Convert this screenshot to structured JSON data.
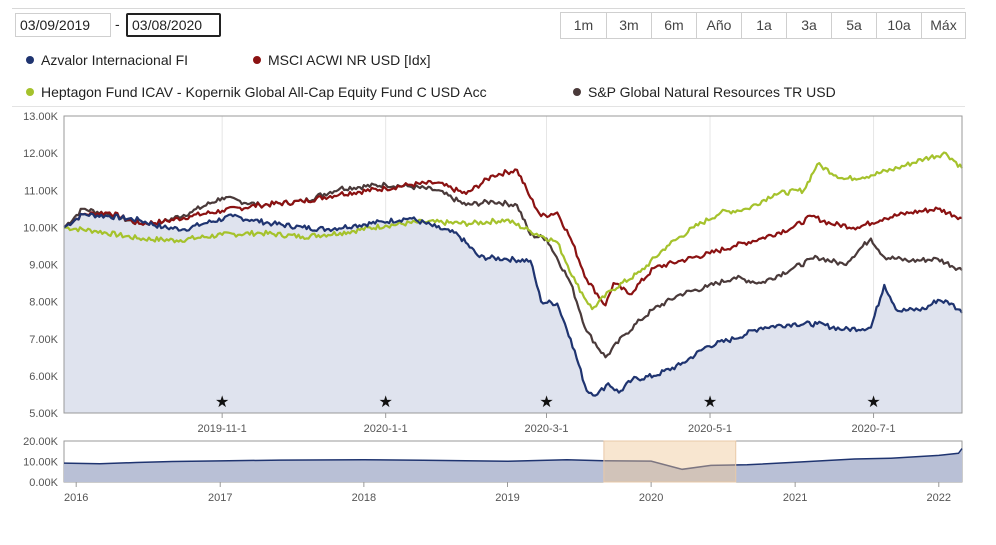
{
  "date_range": {
    "from": "03/09/2019",
    "separator": "-",
    "to": "03/08/2020"
  },
  "range_buttons": [
    "1m",
    "3m",
    "6m",
    "Año",
    "1a",
    "3a",
    "5a",
    "10a",
    "Máx"
  ],
  "legend": [
    {
      "name": "Azvalor Internacional FI",
      "color": "#1f3470"
    },
    {
      "name": "MSCI ACWI NR USD [Idx]",
      "color": "#8b1212"
    },
    {
      "name": "Heptagon Fund ICAV - Kopernik Global All-Cap Equity Fund C USD Acc",
      "color": "#a5c22c"
    },
    {
      "name": "S&P Global Natural Resources TR USD",
      "color": "#4a3a3a"
    }
  ],
  "chart_data": [
    {
      "type": "line",
      "title": "",
      "xlabel": "",
      "ylabel": "",
      "ylim": [
        5000,
        13000
      ],
      "yticks": [
        {
          "value": 5000,
          "label": "5.00K"
        },
        {
          "value": 6000,
          "label": "6.00K"
        },
        {
          "value": 7000,
          "label": "7.00K"
        },
        {
          "value": 8000,
          "label": "8.00K"
        },
        {
          "value": 9000,
          "label": "9.00K"
        },
        {
          "value": 10000,
          "label": "10.00K"
        },
        {
          "value": 11000,
          "label": "11.00K"
        },
        {
          "value": 12000,
          "label": "12.00K"
        },
        {
          "value": 13000,
          "label": "13.00K"
        }
      ],
      "xlim": [
        "2019-09-03",
        "2020-08-03"
      ],
      "xticks": [
        {
          "date": "2019-11-01",
          "label": "2019-11-1"
        },
        {
          "date": "2020-01-01",
          "label": "2020-1-1"
        },
        {
          "date": "2020-03-01",
          "label": "2020-3-1"
        },
        {
          "date": "2020-05-01",
          "label": "2020-5-1"
        },
        {
          "date": "2020-07-01",
          "label": "2020-7-1"
        }
      ],
      "event_markers": [
        "2019-11-01",
        "2020-01-01",
        "2020-03-01",
        "2020-05-01",
        "2020-07-01"
      ],
      "grid": "vertical",
      "legend_position": "top",
      "series": [
        {
          "name": "Azvalor Internacional FI",
          "color": "#1f3470",
          "area": true,
          "points": [
            [
              "2019-09-03",
              10000
            ],
            [
              "2019-09-10",
              10350
            ],
            [
              "2019-09-20",
              10300
            ],
            [
              "2019-10-01",
              10200
            ],
            [
              "2019-10-10",
              10000
            ],
            [
              "2019-10-18",
              9950
            ],
            [
              "2019-10-25",
              10100
            ],
            [
              "2019-11-05",
              10300
            ],
            [
              "2019-11-12",
              10200
            ],
            [
              "2019-11-20",
              10100
            ],
            [
              "2019-12-01",
              10000
            ],
            [
              "2019-12-10",
              9950
            ],
            [
              "2019-12-20",
              10050
            ],
            [
              "2019-12-31",
              10150
            ],
            [
              "2020-01-10",
              10250
            ],
            [
              "2020-01-20",
              10000
            ],
            [
              "2020-01-28",
              9800
            ],
            [
              "2020-02-05",
              9200
            ],
            [
              "2020-02-15",
              9150
            ],
            [
              "2020-02-24",
              9100
            ],
            [
              "2020-02-28",
              8000
            ],
            [
              "2020-03-05",
              7950
            ],
            [
              "2020-03-10",
              7000
            ],
            [
              "2020-03-16",
              5600
            ],
            [
              "2020-03-20",
              5500
            ],
            [
              "2020-03-24",
              5800
            ],
            [
              "2020-03-28",
              5550
            ],
            [
              "2020-04-02",
              5900
            ],
            [
              "2020-04-10",
              6000
            ],
            [
              "2020-04-20",
              6300
            ],
            [
              "2020-04-30",
              6800
            ],
            [
              "2020-05-10",
              7000
            ],
            [
              "2020-05-20",
              7300
            ],
            [
              "2020-06-01",
              7400
            ],
            [
              "2020-06-10",
              7400
            ],
            [
              "2020-06-20",
              7250
            ],
            [
              "2020-06-30",
              7300
            ],
            [
              "2020-07-05",
              8450
            ],
            [
              "2020-07-10",
              7750
            ],
            [
              "2020-07-20",
              7800
            ],
            [
              "2020-07-25",
              8050
            ],
            [
              "2020-07-30",
              7950
            ],
            [
              "2020-08-03",
              7700
            ]
          ]
        },
        {
          "name": "MSCI ACWI NR USD [Idx]",
          "color": "#8b1212",
          "area": false,
          "points": [
            [
              "2019-09-03",
              10000
            ],
            [
              "2019-09-10",
              10350
            ],
            [
              "2019-09-20",
              10400
            ],
            [
              "2019-10-01",
              10100
            ],
            [
              "2019-10-10",
              10150
            ],
            [
              "2019-10-20",
              10300
            ],
            [
              "2019-11-01",
              10450
            ],
            [
              "2019-11-15",
              10600
            ],
            [
              "2019-12-01",
              10700
            ],
            [
              "2019-12-15",
              10900
            ],
            [
              "2020-01-01",
              11050
            ],
            [
              "2020-01-10",
              11150
            ],
            [
              "2020-01-20",
              11200
            ],
            [
              "2020-01-31",
              10900
            ],
            [
              "2020-02-10",
              11400
            ],
            [
              "2020-02-19",
              11550
            ],
            [
              "2020-02-24",
              10800
            ],
            [
              "2020-02-28",
              10300
            ],
            [
              "2020-03-05",
              10400
            ],
            [
              "2020-03-10",
              9700
            ],
            [
              "2020-03-16",
              8600
            ],
            [
              "2020-03-23",
              7900
            ],
            [
              "2020-03-26",
              8500
            ],
            [
              "2020-04-01",
              8200
            ],
            [
              "2020-04-10",
              8900
            ],
            [
              "2020-04-20",
              9100
            ],
            [
              "2020-05-01",
              9300
            ],
            [
              "2020-05-10",
              9500
            ],
            [
              "2020-05-20",
              9700
            ],
            [
              "2020-06-01",
              10000
            ],
            [
              "2020-06-08",
              10300
            ],
            [
              "2020-06-15",
              10100
            ],
            [
              "2020-06-25",
              10000
            ],
            [
              "2020-07-05",
              10250
            ],
            [
              "2020-07-15",
              10400
            ],
            [
              "2020-07-25",
              10500
            ],
            [
              "2020-08-03",
              10250
            ]
          ]
        },
        {
          "name": "Heptagon Fund ICAV - Kopernik Global All-Cap Equity Fund C USD Acc",
          "color": "#a5c22c",
          "area": false,
          "points": [
            [
              "2019-09-03",
              10000
            ],
            [
              "2019-09-15",
              9900
            ],
            [
              "2019-10-01",
              9700
            ],
            [
              "2019-10-15",
              9650
            ],
            [
              "2019-11-01",
              9800
            ],
            [
              "2019-11-15",
              9850
            ],
            [
              "2019-12-01",
              9750
            ],
            [
              "2019-12-15",
              9850
            ],
            [
              "2020-01-01",
              10050
            ],
            [
              "2020-01-15",
              10150
            ],
            [
              "2020-02-01",
              10100
            ],
            [
              "2020-02-15",
              10200
            ],
            [
              "2020-02-24",
              9900
            ],
            [
              "2020-03-05",
              9600
            ],
            [
              "2020-03-12",
              8500
            ],
            [
              "2020-03-18",
              7800
            ],
            [
              "2020-03-25",
              8300
            ],
            [
              "2020-04-05",
              8800
            ],
            [
              "2020-04-15",
              9500
            ],
            [
              "2020-04-25",
              10000
            ],
            [
              "2020-05-05",
              10400
            ],
            [
              "2020-05-15",
              10500
            ],
            [
              "2020-05-25",
              10900
            ],
            [
              "2020-06-05",
              11000
            ],
            [
              "2020-06-10",
              11700
            ],
            [
              "2020-06-20",
              11300
            ],
            [
              "2020-06-30",
              11400
            ],
            [
              "2020-07-10",
              11600
            ],
            [
              "2020-07-20",
              11850
            ],
            [
              "2020-07-28",
              12000
            ],
            [
              "2020-08-03",
              11600
            ]
          ]
        },
        {
          "name": "S&P Global Natural Resources TR USD",
          "color": "#4a3a3a",
          "area": false,
          "points": [
            [
              "2019-09-03",
              10000
            ],
            [
              "2019-09-10",
              10500
            ],
            [
              "2019-09-20",
              10350
            ],
            [
              "2019-10-01",
              10100
            ],
            [
              "2019-10-10",
              10150
            ],
            [
              "2019-10-20",
              10400
            ],
            [
              "2019-11-01",
              10800
            ],
            [
              "2019-11-15",
              10600
            ],
            [
              "2019-12-01",
              10700
            ],
            [
              "2019-12-15",
              11050
            ],
            [
              "2020-01-01",
              11150
            ],
            [
              "2020-01-10",
              11100
            ],
            [
              "2020-01-20",
              11000
            ],
            [
              "2020-01-31",
              10600
            ],
            [
              "2020-02-10",
              10700
            ],
            [
              "2020-02-19",
              10600
            ],
            [
              "2020-02-24",
              9800
            ],
            [
              "2020-03-01",
              9700
            ],
            [
              "2020-03-10",
              8500
            ],
            [
              "2020-03-16",
              7200
            ],
            [
              "2020-03-23",
              6500
            ],
            [
              "2020-03-30",
              7100
            ],
            [
              "2020-04-05",
              7500
            ],
            [
              "2020-04-10",
              7800
            ],
            [
              "2020-04-20",
              8200
            ],
            [
              "2020-04-30",
              8400
            ],
            [
              "2020-05-10",
              8650
            ],
            [
              "2020-05-20",
              8500
            ],
            [
              "2020-06-01",
              8900
            ],
            [
              "2020-06-10",
              9200
            ],
            [
              "2020-06-20",
              9000
            ],
            [
              "2020-06-30",
              9700
            ],
            [
              "2020-07-05",
              9200
            ],
            [
              "2020-07-15",
              9100
            ],
            [
              "2020-07-25",
              9150
            ],
            [
              "2020-08-03",
              8850
            ]
          ]
        }
      ]
    },
    {
      "type": "area",
      "title": "",
      "xlabel": "",
      "ylabel": "",
      "ylim": [
        0,
        20000
      ],
      "yticks": [
        {
          "value": 0,
          "label": "0.00K"
        },
        {
          "value": 10000,
          "label": "10.00K"
        },
        {
          "value": 20000,
          "label": "20.00K"
        }
      ],
      "xlim": [
        "2015-12-01",
        "2022-03-01"
      ],
      "xticks": [
        {
          "date": "2016-01-01",
          "label": "2016"
        },
        {
          "date": "2017-01-01",
          "label": "2017"
        },
        {
          "date": "2018-01-01",
          "label": "2018"
        },
        {
          "date": "2019-01-01",
          "label": "2019"
        },
        {
          "date": "2020-01-01",
          "label": "2020"
        },
        {
          "date": "2021-01-01",
          "label": "2021"
        },
        {
          "date": "2022-01-01",
          "label": "2022"
        }
      ],
      "selected_range": [
        "2019-09-03",
        "2020-08-03"
      ],
      "series": [
        {
          "color": "#1f3470",
          "points": [
            [
              "2015-12-01",
              9200
            ],
            [
              "2016-03-01",
              8900
            ],
            [
              "2016-06-01",
              9500
            ],
            [
              "2016-09-01",
              10000
            ],
            [
              "2017-01-01",
              10300
            ],
            [
              "2017-06-01",
              10700
            ],
            [
              "2018-01-01",
              10900
            ],
            [
              "2018-06-01",
              10600
            ],
            [
              "2019-01-01",
              10100
            ],
            [
              "2019-06-01",
              10900
            ],
            [
              "2019-09-01",
              10400
            ],
            [
              "2020-01-01",
              10200
            ],
            [
              "2020-03-20",
              6200
            ],
            [
              "2020-06-01",
              8100
            ],
            [
              "2020-09-01",
              8400
            ],
            [
              "2021-01-01",
              9600
            ],
            [
              "2021-06-01",
              11200
            ],
            [
              "2021-09-01",
              11600
            ],
            [
              "2022-01-01",
              13000
            ],
            [
              "2022-02-20",
              14000
            ],
            [
              "2022-03-01",
              16300
            ]
          ]
        }
      ]
    }
  ]
}
